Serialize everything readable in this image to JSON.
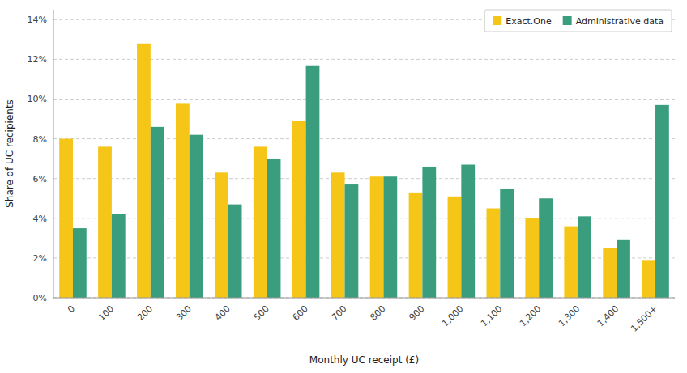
{
  "chart_data": {
    "type": "bar",
    "xlabel": "Monthly UC receipt (£)",
    "ylabel": "Share of UC recipients",
    "categories": [
      "0",
      "100",
      "200",
      "300",
      "400",
      "500",
      "600",
      "700",
      "800",
      "900",
      "1,000",
      "1,100",
      "1,200",
      "1,300",
      "1,400",
      "1,500+"
    ],
    "series": [
      {
        "name": "Exact.One",
        "color": "#F5C518",
        "values": [
          0.08,
          0.076,
          0.128,
          0.098,
          0.063,
          0.076,
          0.089,
          0.063,
          0.061,
          0.053,
          0.051,
          0.045,
          0.04,
          0.036,
          0.025,
          0.019
        ]
      },
      {
        "name": "Administrative data",
        "color": "#3A9E7E",
        "values": [
          0.035,
          0.042,
          0.086,
          0.082,
          0.047,
          0.07,
          0.117,
          0.057,
          0.061,
          0.066,
          0.067,
          0.055,
          0.05,
          0.041,
          0.029,
          0.097
        ]
      }
    ],
    "ylim": [
      0,
      0.145
    ],
    "yticks": [
      {
        "value": 0,
        "label": "0%"
      },
      {
        "value": 0.02,
        "label": "2%"
      },
      {
        "value": 0.04,
        "label": "4%"
      },
      {
        "value": 0.06,
        "label": "6%"
      },
      {
        "value": 0.08,
        "label": "8%"
      },
      {
        "value": 0.1,
        "label": "10%"
      },
      {
        "value": 0.12,
        "label": "12%"
      },
      {
        "value": 0.14,
        "label": "14%"
      }
    ],
    "grid": true,
    "legend": "upper right"
  }
}
